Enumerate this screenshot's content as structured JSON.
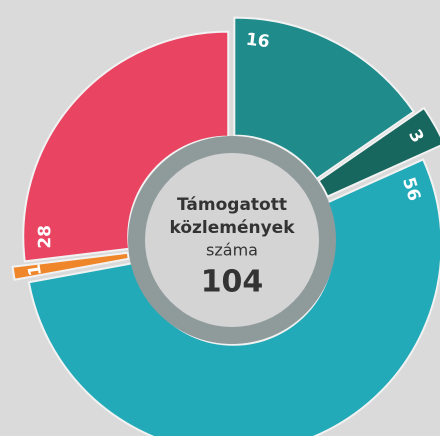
{
  "chart_data": {
    "type": "donut",
    "center_text": [
      "Támogatott",
      "közlemények",
      "száma"
    ],
    "center_value": 104,
    "values": [
      16,
      3,
      56,
      1,
      28
    ],
    "colors": [
      "#1f8b8b",
      "#17675f",
      "#23aab8",
      "#f0862a",
      "#e94462"
    ]
  }
}
